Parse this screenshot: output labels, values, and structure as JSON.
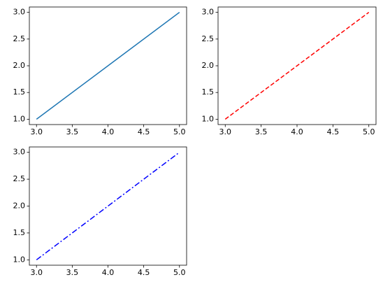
{
  "chart_data": [
    {
      "type": "line",
      "x": [
        3,
        4,
        5
      ],
      "values": [
        1,
        2,
        3
      ],
      "color": "#1f77b4",
      "linestyle": "solid",
      "xlim": [
        2.9,
        5.1
      ],
      "ylim": [
        0.9,
        3.1
      ],
      "xticks": [
        {
          "value": 3,
          "label": "3.0"
        },
        3.5,
        {
          "value": 4,
          "label": "4.0"
        },
        4.5,
        {
          "value": 5,
          "label": "5.0"
        }
      ],
      "yticks": [
        {
          "value": 1,
          "label": "1.0"
        },
        1.5,
        {
          "value": 2,
          "label": "2.0"
        },
        2.5,
        {
          "value": 3,
          "label": "3.0"
        }
      ]
    },
    {
      "type": "line",
      "x": [
        3,
        4,
        5
      ],
      "values": [
        1,
        2,
        3
      ],
      "color": "#ff0000",
      "linestyle": "dashed",
      "xlim": [
        2.9,
        5.1
      ],
      "ylim": [
        0.9,
        3.1
      ],
      "xticks": [
        {
          "value": 3,
          "label": "3.0"
        },
        3.5,
        {
          "value": 4,
          "label": "4.0"
        },
        4.5,
        {
          "value": 5,
          "label": "5.0"
        }
      ],
      "yticks": [
        {
          "value": 1,
          "label": "1.0"
        },
        1.5,
        {
          "value": 2,
          "label": "2.0"
        },
        2.5,
        {
          "value": 3,
          "label": "3.0"
        }
      ]
    },
    {
      "type": "line",
      "x": [
        3,
        4,
        5
      ],
      "values": [
        1,
        2,
        3
      ],
      "color": "#0000ff",
      "linestyle": "dashdot",
      "xlim": [
        2.9,
        5.1
      ],
      "ylim": [
        0.9,
        3.1
      ],
      "xticks": [
        {
          "value": 3,
          "label": "3.0"
        },
        3.5,
        {
          "value": 4,
          "label": "4.0"
        },
        4.5,
        {
          "value": 5,
          "label": "5.0"
        }
      ],
      "yticks": [
        {
          "value": 1,
          "label": "1.0"
        },
        1.5,
        {
          "value": 2,
          "label": "2.0"
        },
        2.5,
        {
          "value": 3,
          "label": "3.0"
        }
      ]
    }
  ]
}
